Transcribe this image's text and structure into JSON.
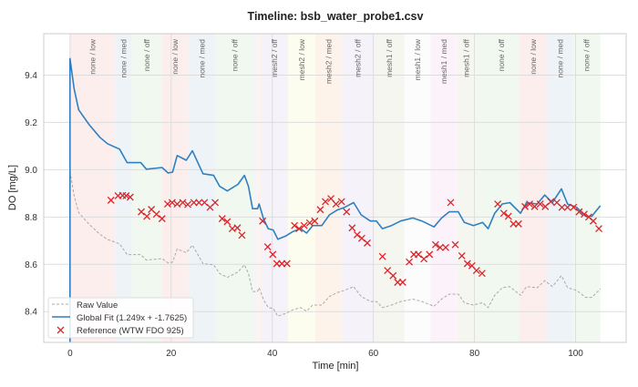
{
  "chart_data": {
    "type": "line",
    "title": "Timeline: bsb_water_probe1.csv",
    "xlabel": "Time [min]",
    "ylabel": "DO [mg/L]",
    "xlim": [
      -5.2,
      110
    ],
    "ylim": [
      8.27,
      9.575
    ],
    "xticks": [
      0,
      20,
      40,
      60,
      80,
      100
    ],
    "yticks": [
      8.4,
      8.6,
      8.8,
      9.0,
      9.2,
      9.4
    ],
    "ytick_labels": [
      "8.4",
      "8.6",
      "8.8",
      "9.0",
      "9.2",
      "9.4"
    ],
    "grid": true,
    "legend_position": "bottom-left",
    "bands": [
      {
        "label": "none / low",
        "start": 0,
        "end": 8.9,
        "color": "#fdeeee"
      },
      {
        "label": "none / med",
        "start": 8.9,
        "end": 12.2,
        "color": "#eef3f8"
      },
      {
        "label": "none / off",
        "start": 12.2,
        "end": 18.2,
        "color": "#f0f8ef"
      },
      {
        "label": "none / low",
        "start": 18.2,
        "end": 23.4,
        "color": "#fdeeee"
      },
      {
        "label": "none / med",
        "start": 23.4,
        "end": 28.8,
        "color": "#eef3f8"
      },
      {
        "label": "none / off",
        "start": 28.8,
        "end": 36.4,
        "color": "#f0f8ef"
      },
      {
        "label": "",
        "start": 36.4,
        "end": 37.1,
        "color": "#f7f3fa"
      },
      {
        "label": "",
        "start": 37.1,
        "end": 37.8,
        "color": "#fdf3ea"
      },
      {
        "label": "mesh2 / off",
        "start": 37.8,
        "end": 43.1,
        "color": "#f5f2f9"
      },
      {
        "label": "mesh2 / low",
        "start": 43.1,
        "end": 48.5,
        "color": "#fdfdef"
      },
      {
        "label": "mesh2 / med",
        "start": 48.5,
        "end": 53.7,
        "color": "#fdf3ea"
      },
      {
        "label": "mesh2 / off",
        "start": 53.7,
        "end": 60.2,
        "color": "#f5f2f9"
      },
      {
        "label": "mesh1 / off",
        "start": 60.2,
        "end": 66.1,
        "color": "#f6f6f0"
      },
      {
        "label": "mesh1 / low",
        "start": 66.1,
        "end": 71.3,
        "color": "#fcfcfc"
      },
      {
        "label": "mesh1 / med",
        "start": 71.3,
        "end": 76.5,
        "color": "#fcf3fa"
      },
      {
        "label": "mesh1 / off",
        "start": 76.5,
        "end": 80.3,
        "color": "#f6f6f0"
      },
      {
        "label": "",
        "start": 80.3,
        "end": 81.7,
        "color": "#f2f8f0"
      },
      {
        "label": "none / off",
        "start": 81.7,
        "end": 88.9,
        "color": "#f0f8ef"
      },
      {
        "label": "none / low",
        "start": 88.9,
        "end": 94.4,
        "color": "#fdeeee"
      },
      {
        "label": "none / med",
        "start": 94.4,
        "end": 99.5,
        "color": "#eef3f8"
      },
      {
        "label": "none / off",
        "start": 99.5,
        "end": 104.9,
        "color": "#f0f8ef"
      }
    ],
    "series": [
      {
        "name": "Raw Value",
        "style": "dashed",
        "color": "#a8a8a8",
        "x": [
          0,
          0.8,
          1.7,
          3.8,
          5.9,
          7.4,
          9.8,
          11.3,
          14,
          15.1,
          18.2,
          19.4,
          20.3,
          21.2,
          23,
          24.2,
          26.3,
          28.4,
          29.6,
          31.1,
          33.2,
          34.5,
          35.3,
          36.1,
          37.1,
          37.4,
          38.3,
          39.2,
          40.2,
          41.1,
          42.6,
          44.1,
          45.6,
          46.8,
          48,
          49.8,
          51.3,
          52.8,
          54.3,
          56.1,
          57.6,
          59.4,
          60.6,
          61.8,
          63.6,
          65.4,
          67.8,
          69.6,
          72,
          73.5,
          75,
          76.8,
          78,
          79.8,
          81.6,
          82.7,
          84,
          85.5,
          87,
          89.1,
          90.3,
          92.4,
          93.9,
          95.4,
          97.2,
          98.4,
          100.2,
          102,
          103.2,
          104.9
        ],
        "y": [
          8.993,
          8.891,
          8.819,
          8.769,
          8.727,
          8.705,
          8.687,
          8.641,
          8.641,
          8.618,
          8.624,
          8.606,
          8.609,
          8.665,
          8.649,
          8.681,
          8.603,
          8.598,
          8.561,
          8.545,
          8.567,
          8.598,
          8.561,
          8.485,
          8.485,
          8.501,
          8.449,
          8.417,
          8.413,
          8.381,
          8.392,
          8.408,
          8.417,
          8.402,
          8.428,
          8.428,
          8.464,
          8.48,
          8.49,
          8.506,
          8.464,
          8.443,
          8.443,
          8.417,
          8.428,
          8.443,
          8.453,
          8.443,
          8.423,
          8.453,
          8.474,
          8.474,
          8.438,
          8.428,
          8.438,
          8.417,
          8.469,
          8.501,
          8.506,
          8.469,
          8.506,
          8.501,
          8.531,
          8.506,
          8.552,
          8.501,
          8.49,
          8.46,
          8.46,
          8.496
        ]
      },
      {
        "name": "Global Fit (1.249x + -1.7625)",
        "style": "solid",
        "color": "#2f7fc1",
        "x": [
          0,
          0,
          0.8,
          1.7,
          3.8,
          5.9,
          7.4,
          9.8,
          11.3,
          14,
          15.1,
          18.2,
          19.4,
          20.3,
          21.2,
          23,
          24.2,
          26.3,
          28.4,
          29.6,
          31.1,
          33.2,
          34.5,
          35.3,
          36.1,
          37.1,
          37.4,
          38.3,
          39.2,
          40.2,
          41.1,
          42.6,
          44.1,
          45.6,
          46.8,
          48,
          49.8,
          51.3,
          52.8,
          54.3,
          56.1,
          57.6,
          59.4,
          60.6,
          61.8,
          63.6,
          65.4,
          67.8,
          69.6,
          72,
          73.5,
          75,
          76.8,
          78,
          79.8,
          81.6,
          82.7,
          84,
          85.5,
          87,
          89.1,
          90.3,
          92.4,
          93.9,
          95.4,
          97.2,
          98.4,
          100.2,
          102,
          103.2,
          104.9
        ],
        "y": [
          8.2,
          9.47,
          9.343,
          9.253,
          9.19,
          9.137,
          9.11,
          9.087,
          9.03,
          9.03,
          9.002,
          9.009,
          8.986,
          8.99,
          9.06,
          9.04,
          9.08,
          8.983,
          8.976,
          8.93,
          8.91,
          8.938,
          8.976,
          8.93,
          8.835,
          8.835,
          8.855,
          8.79,
          8.751,
          8.745,
          8.706,
          8.719,
          8.739,
          8.751,
          8.732,
          8.764,
          8.764,
          8.809,
          8.829,
          8.841,
          8.861,
          8.809,
          8.783,
          8.783,
          8.751,
          8.764,
          8.783,
          8.796,
          8.783,
          8.758,
          8.796,
          8.822,
          8.822,
          8.777,
          8.764,
          8.777,
          8.751,
          8.816,
          8.855,
          8.861,
          8.816,
          8.861,
          8.855,
          8.893,
          8.861,
          8.919,
          8.855,
          8.841,
          8.803,
          8.803,
          8.848
        ]
      },
      {
        "name": "Reference (WTW FDO 925)",
        "style": "x-marker",
        "color": "#d9262b",
        "x": [
          8.1,
          9.5,
          10.4,
          11.1,
          11.9,
          14.1,
          15.2,
          16.1,
          17.1,
          18.2,
          19.3,
          20.2,
          21.2,
          22.3,
          23.3,
          24.5,
          25.5,
          26.6,
          27.7,
          28.7,
          30.1,
          31.1,
          32.1,
          33.1,
          34,
          38.1,
          39.1,
          40.1,
          40.9,
          41.9,
          42.9,
          44.4,
          45.3,
          46.3,
          47.4,
          48.4,
          49.5,
          50.5,
          51.6,
          52.6,
          53.7,
          54.7,
          55.8,
          56.8,
          57.7,
          58.8,
          61.8,
          62.8,
          63.9,
          64.8,
          65.8,
          67.1,
          68,
          68.9,
          70,
          71.1,
          72.3,
          73.2,
          74.3,
          75.3,
          76.2,
          77.5,
          78.6,
          79.5,
          80.4,
          81.5,
          84.6,
          85.8,
          86.7,
          87.7,
          88.7,
          90,
          90.9,
          91.9,
          93,
          94,
          95.1,
          96.3,
          97.3,
          98.4,
          99.6,
          100.7,
          101.7,
          102.6,
          103.5,
          104.6
        ],
        "y": [
          8.871,
          8.89,
          8.891,
          8.89,
          8.884,
          8.822,
          8.803,
          8.832,
          8.812,
          8.793,
          8.855,
          8.861,
          8.855,
          8.861,
          8.853,
          8.861,
          8.861,
          8.861,
          8.841,
          8.861,
          8.793,
          8.78,
          8.751,
          8.754,
          8.723,
          8.783,
          8.674,
          8.642,
          8.603,
          8.603,
          8.603,
          8.764,
          8.751,
          8.764,
          8.775,
          8.783,
          8.831,
          8.865,
          8.878,
          8.855,
          8.865,
          8.822,
          8.754,
          8.725,
          8.71,
          8.69,
          8.633,
          8.574,
          8.552,
          8.524,
          8.524,
          8.61,
          8.642,
          8.642,
          8.623,
          8.642,
          8.683,
          8.671,
          8.671,
          8.861,
          8.683,
          8.636,
          8.603,
          8.594,
          8.574,
          8.562,
          8.855,
          8.816,
          8.803,
          8.771,
          8.771,
          8.844,
          8.855,
          8.844,
          8.855,
          8.844,
          8.865,
          8.861,
          8.841,
          8.841,
          8.841,
          8.822,
          8.812,
          8.8,
          8.783,
          8.751
        ]
      }
    ]
  }
}
